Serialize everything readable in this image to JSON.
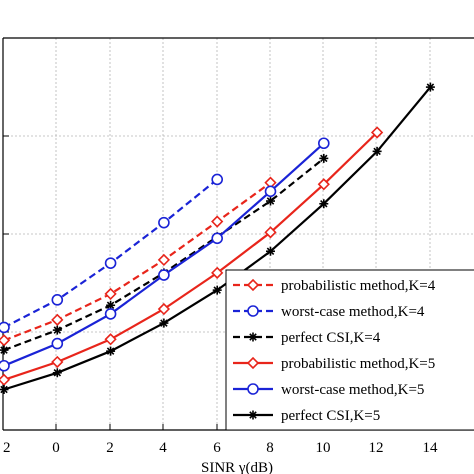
{
  "chart_data": {
    "type": "line",
    "title": "",
    "xlabel": "SINR γ(dB)",
    "ylabel": "",
    "x_ticks": [
      "2",
      "0",
      "2",
      "4",
      "6",
      "8",
      "10",
      "12",
      "14"
    ],
    "xlim": [
      -2,
      15
    ],
    "grid": true,
    "legend_position": "bottom-right",
    "series": [
      {
        "name": "probabilistic method,K=4",
        "color": "#e8251b",
        "dash": "dashed",
        "marker": "diamond",
        "x": [
          -2,
          0,
          2,
          4,
          6,
          8
        ],
        "y": [
          16.6,
          20.4,
          25.2,
          31.5,
          38.6,
          45.8
        ]
      },
      {
        "name": "worst-case method,K=4",
        "color": "#1a23d6",
        "dash": "dashed",
        "marker": "circle",
        "x": [
          -2,
          0,
          2,
          4,
          6
        ],
        "y": [
          19.0,
          24.1,
          30.9,
          38.4,
          46.4
        ]
      },
      {
        "name": "perfect CSI,K=4",
        "color": "#000000",
        "dash": "dashed",
        "marker": "star",
        "x": [
          -2,
          0,
          2,
          4,
          6,
          8,
          10
        ],
        "y": [
          14.8,
          18.5,
          23.1,
          29.1,
          35.8,
          42.4,
          50.3
        ]
      },
      {
        "name": "probabilistic method,K=5",
        "color": "#e8251b",
        "dash": "solid",
        "marker": "diamond",
        "x": [
          -2,
          0,
          2,
          4,
          6,
          8,
          10,
          12
        ],
        "y": [
          9.3,
          12.6,
          16.8,
          22.4,
          29.1,
          36.6,
          45.5,
          55.1
        ]
      },
      {
        "name": "worst-case method,K=5",
        "color": "#1a23d6",
        "dash": "solid",
        "marker": "circle",
        "x": [
          -2,
          0,
          2,
          4,
          6,
          8,
          10
        ],
        "y": [
          11.9,
          16.0,
          21.5,
          28.7,
          35.5,
          44.2,
          53.1
        ]
      },
      {
        "name": "perfect CSI,K=5",
        "color": "#000000",
        "dash": "solid",
        "marker": "star",
        "x": [
          -2,
          0,
          2,
          4,
          6,
          8,
          10,
          12,
          14
        ],
        "y": [
          7.5,
          10.6,
          14.6,
          19.8,
          25.9,
          33.1,
          41.9,
          51.6,
          63.5
        ]
      }
    ]
  }
}
